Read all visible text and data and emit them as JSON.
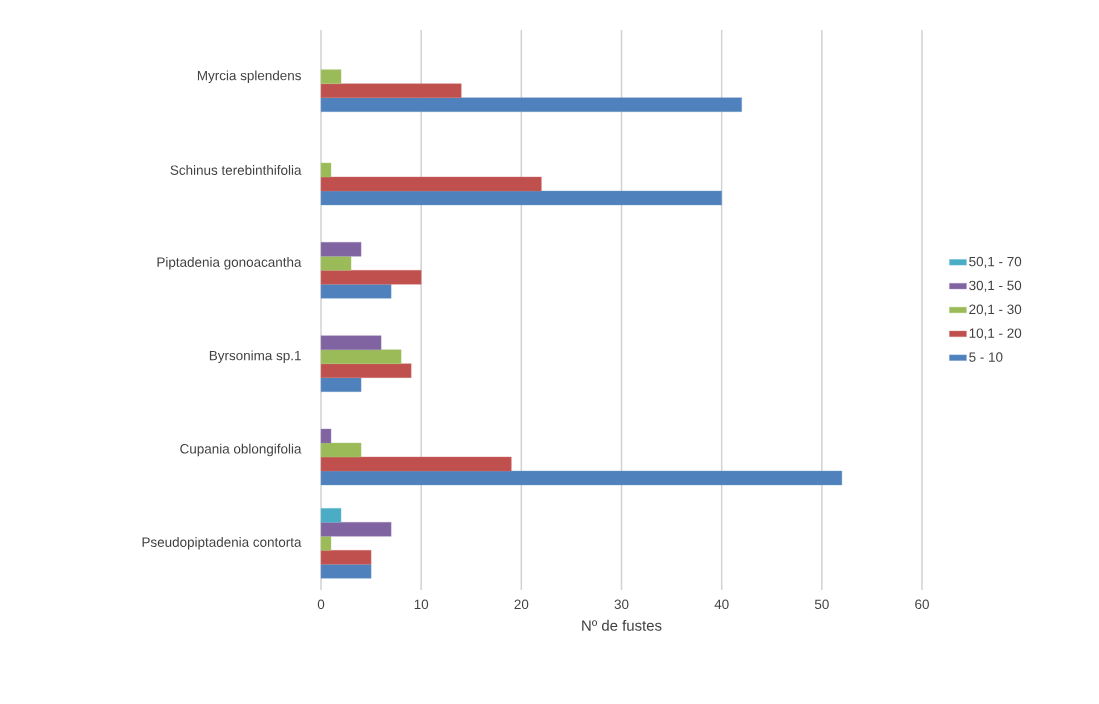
{
  "chart_data": {
    "type": "bar",
    "orientation": "horizontal",
    "xlabel": "Nº de fustes",
    "categories": [
      "Myrcia splendens",
      "Schinus terebinthifolia",
      "Piptadenia gonoacantha",
      "Byrsonima sp.1",
      "Cupania oblongifolia",
      "Pseudopiptadenia contorta"
    ],
    "series": [
      {
        "name": "5 - 10",
        "color": "#4f81bd",
        "values": [
          42,
          40,
          7,
          4,
          52,
          5
        ]
      },
      {
        "name": "10,1 - 20",
        "color": "#c0504d",
        "values": [
          14,
          22,
          10,
          9,
          19,
          5
        ]
      },
      {
        "name": "20,1 - 30",
        "color": "#9bbb59",
        "values": [
          2,
          1,
          3,
          8,
          4,
          1
        ]
      },
      {
        "name": "30,1 - 50",
        "color": "#8064a2",
        "values": [
          null,
          null,
          4,
          6,
          1,
          7
        ]
      },
      {
        "name": "50,1 - 70",
        "color": "#4bacc6",
        "values": [
          null,
          null,
          null,
          null,
          null,
          2
        ]
      }
    ],
    "xlim": [
      0,
      60
    ],
    "xticks": [
      0,
      10,
      20,
      30,
      40,
      50,
      60
    ],
    "grid": "x",
    "legend": "right"
  }
}
